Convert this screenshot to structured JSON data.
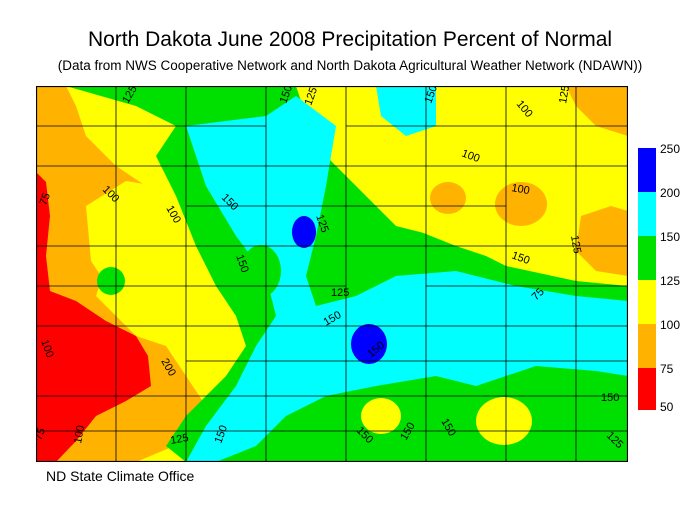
{
  "title": "North Dakota June 2008 Precipitation Percent of Normal",
  "subtitle": "(Data from NWS Cooperative Network and North Dakota Agricultural Weather Network (NDAWN))",
  "credit": "ND State Climate Office",
  "legend": {
    "bins": [
      {
        "from": 50,
        "to": 75,
        "color": "#ff0000"
      },
      {
        "from": 75,
        "to": 100,
        "color": "#ffb300"
      },
      {
        "from": 100,
        "to": 125,
        "color": "#ffff00"
      },
      {
        "from": 125,
        "to": 150,
        "color": "#00e000"
      },
      {
        "from": 150,
        "to": 200,
        "color": "#00ffff"
      },
      {
        "from": 200,
        "to": 250,
        "color": "#0000ff"
      }
    ],
    "labels": [
      "250",
      "200",
      "150",
      "125",
      "100",
      "75",
      "50"
    ]
  },
  "contour_labels": [
    "125",
    "150",
    "125",
    "150",
    "100",
    "125",
    "100",
    "75",
    "100",
    "150",
    "125",
    "150",
    "100",
    "100",
    "125",
    "150",
    "125",
    "150",
    "75",
    "100",
    "200",
    "150",
    "75",
    "100",
    "125",
    "150",
    "150",
    "150",
    "150",
    "150",
    "125"
  ]
}
